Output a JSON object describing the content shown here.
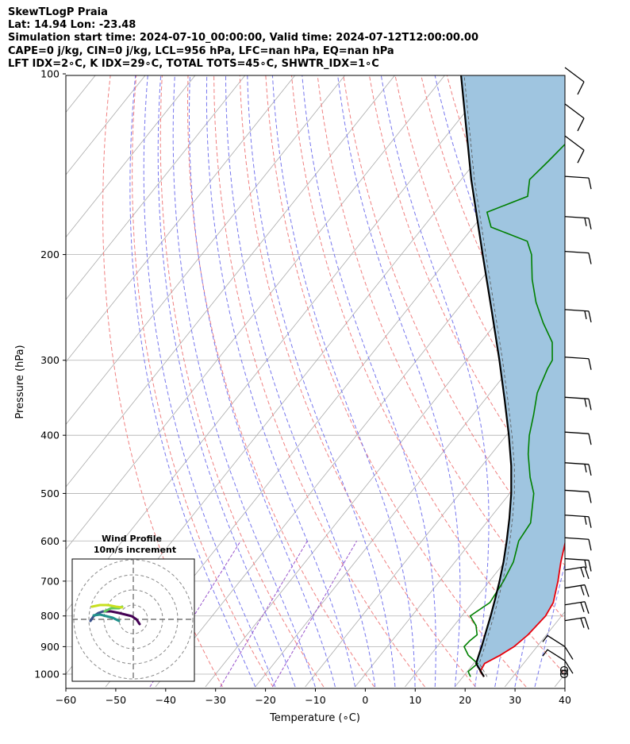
{
  "header": {
    "line1": "SkewTLogP Praia",
    "line2": "Lat: 14.94   Lon: -23.48",
    "line3": "Simulation start time: 2024-07-10_00:00:00, Valid time: 2024-07-12T12:00:00.00",
    "line4": "CAPE=0 j/kg, CIN=0 j/kg, LCL=956 hPa, LFC=nan hPa, EQ=nan hPa",
    "line5": "LFT IDX=2∘C, K IDX=29∘C, TOTAL TOTS=45∘C, SHWTR_IDX=1∘C"
  },
  "chart_data": {
    "type": "line",
    "title": "SkewTLogP Praia",
    "xlabel": "Temperature (∘C)",
    "ylabel": "Pressure (hPa)",
    "xlim": [
      -60,
      40
    ],
    "ylim": [
      1050,
      100
    ],
    "x_ticks": [
      "−60",
      "−50",
      "−40",
      "−30",
      "−20",
      "−10",
      "0",
      "10",
      "20",
      "30",
      "40"
    ],
    "x_tick_values": [
      -60,
      -50,
      -40,
      -30,
      -20,
      -10,
      0,
      10,
      20,
      30,
      40
    ],
    "y_ticks": [
      "1000",
      "900",
      "800",
      "700",
      "600",
      "500",
      "400",
      "300",
      "200",
      "100"
    ],
    "y_tick_values": [
      1000,
      900,
      800,
      700,
      600,
      500,
      400,
      300,
      200,
      100
    ],
    "colors": {
      "temperature": "#e8000b",
      "dewpoint": "#008000",
      "parcel": "#000000",
      "fill": "#9fc5e0",
      "isotherm": "#aaaaaa",
      "dry_adiabat": "#f08080",
      "moist_adiabat": "#7777ee",
      "mixing_ratio": "#9955cc"
    },
    "series": [
      {
        "name": "Temperature",
        "p": [
          1010,
          990,
          960,
          930,
          900,
          860,
          800,
          760,
          700,
          650,
          600,
          550,
          500,
          470,
          450,
          430,
          400,
          350,
          300,
          270,
          250,
          230,
          200,
          190,
          180,
          170,
          160,
          150,
          140,
          130,
          120,
          110,
          105,
          100
        ],
        "t": [
          24.2,
          22.6,
          22.2,
          24.0,
          25.4,
          26.3,
          26.8,
          26.2,
          23.7,
          21.2,
          18.8,
          17.1,
          15.1,
          13.5,
          12.4,
          11.3,
          9.4,
          5.6,
          0.4,
          -3.8,
          -6.8,
          -10.2,
          -16.2,
          -18.3,
          -20.5,
          -22.7,
          -25.1,
          -27.6,
          -30.3,
          -33.2,
          -36.5,
          -40.2,
          -42.0,
          -44.2
        ]
      },
      {
        "name": "Dewpoint",
        "p": [
          1010,
          990,
          960,
          930,
          900,
          880,
          860,
          830,
          800,
          760,
          700,
          650,
          600,
          560,
          500,
          470,
          430,
          400,
          370,
          340,
          310,
          300,
          280,
          260,
          240,
          220,
          200,
          190,
          180,
          170,
          160,
          150,
          140,
          130,
          120,
          110,
          105,
          100
        ],
        "t": [
          21.5,
          20.2,
          20.8,
          17.6,
          15.4,
          15.6,
          16.1,
          14.4,
          11.7,
          13.5,
          12.8,
          11.7,
          9.4,
          8.9,
          4.8,
          1.5,
          -2.6,
          -5.4,
          -7.8,
          -10.6,
          -12.4,
          -12.8,
          -15.7,
          -20.6,
          -25.4,
          -29.8,
          -33.9,
          -36.9,
          -46.4,
          -49.6,
          -44.0,
          -46.3,
          -45.5,
          -44.8,
          -46.3,
          -45.2,
          -45.0,
          -45.0
        ]
      },
      {
        "name": "Parcel",
        "p": [
          1010,
          960,
          930,
          900,
          850,
          800,
          750,
          700,
          650,
          600,
          550,
          500,
          450,
          400,
          350,
          300,
          250,
          200,
          150,
          100
        ],
        "t": [
          24.2,
          20.5,
          19.7,
          18.9,
          17.4,
          15.8,
          14.0,
          12.0,
          9.7,
          7.0,
          3.9,
          0.3,
          -4.1,
          -9.5,
          -15.9,
          -23.4,
          -32.5,
          -43.7,
          -58.0,
          -77.0
        ]
      }
    ],
    "wind_barbs_pressure": [
      1000,
      985,
      950,
      900,
      850,
      800,
      750,
      700,
      650,
      600,
      550,
      500,
      450,
      400,
      350,
      300,
      250,
      200,
      175,
      150,
      130,
      115,
      100
    ],
    "wind_inset": {
      "title": "Wind Profile",
      "subtitle": "10m/s increment"
    }
  }
}
